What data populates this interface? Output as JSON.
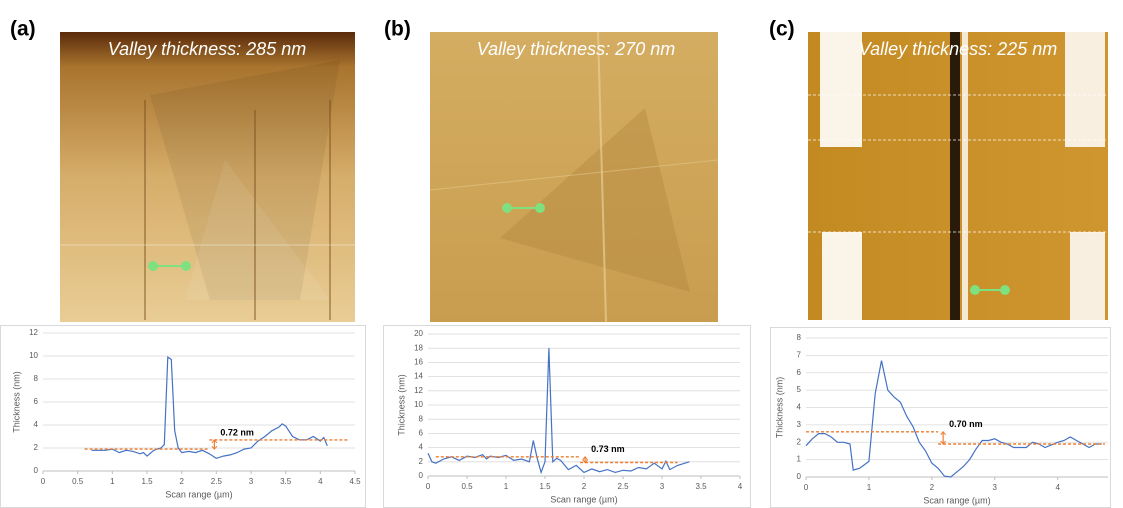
{
  "chart_data": [
    {
      "type": "line",
      "panel": "(a)",
      "image_title": "Valley thickness: 285 nm",
      "annotation": "0.72 nm",
      "xlabel": "Scan range (µm)",
      "ylabel": "Thickness (nm)",
      "xlim": [
        0,
        4.5
      ],
      "ylim": [
        0,
        12
      ],
      "xticks": [
        0,
        0.5,
        1,
        1.5,
        2,
        2.5,
        3,
        3.5,
        4,
        4.5
      ],
      "yticks": [
        0,
        2,
        4,
        6,
        8,
        10,
        12
      ],
      "grid": true,
      "series": [
        {
          "color": "#4472c4",
          "x": [
            0.7,
            0.9,
            1.0,
            1.1,
            1.2,
            1.3,
            1.4,
            1.45,
            1.5,
            1.6,
            1.7,
            1.75,
            1.8,
            1.85,
            1.9,
            1.95,
            2.0,
            2.1,
            2.2,
            2.3,
            2.4,
            2.5,
            2.6,
            2.7,
            2.8,
            2.9,
            3.0,
            3.1,
            3.2,
            3.3,
            3.4,
            3.45,
            3.5,
            3.6,
            3.7,
            3.8,
            3.9,
            4.0,
            4.05,
            4.1
          ],
          "values": [
            1.8,
            1.8,
            1.9,
            1.6,
            1.8,
            1.7,
            1.5,
            1.6,
            1.3,
            1.8,
            2.0,
            2.3,
            9.9,
            9.7,
            3.5,
            2.0,
            1.6,
            1.7,
            1.6,
            1.8,
            1.5,
            1.1,
            1.3,
            1.4,
            1.6,
            1.9,
            2.0,
            2.6,
            3.0,
            3.5,
            3.8,
            4.1,
            3.9,
            3.0,
            2.7,
            2.7,
            3.0,
            2.6,
            2.9,
            2.2
          ]
        },
        {
          "color": "#ed7d31",
          "dash": true,
          "x": [
            0.6,
            2.4
          ],
          "values": [
            1.9,
            1.9
          ]
        },
        {
          "color": "#ed7d31",
          "dash": true,
          "x": [
            2.4,
            4.4
          ],
          "values": [
            2.7,
            2.7
          ]
        }
      ]
    },
    {
      "type": "line",
      "panel": "(b)",
      "image_title": "Valley thickness: 270 nm",
      "annotation": "0.73 nm",
      "xlabel": "Scan range (µm)",
      "ylabel": "Thickness (nm)",
      "xlim": [
        0,
        4
      ],
      "ylim": [
        0,
        20
      ],
      "xticks": [
        0,
        0.5,
        1,
        1.5,
        2,
        2.5,
        3,
        3.5,
        4
      ],
      "yticks": [
        0,
        2,
        4,
        6,
        8,
        10,
        12,
        14,
        16,
        18,
        20
      ],
      "grid": true,
      "series": [
        {
          "color": "#4472c4",
          "x": [
            0,
            0.05,
            0.1,
            0.2,
            0.3,
            0.4,
            0.5,
            0.6,
            0.7,
            0.75,
            0.8,
            0.9,
            1.0,
            1.1,
            1.2,
            1.3,
            1.35,
            1.4,
            1.45,
            1.5,
            1.55,
            1.6,
            1.65,
            1.7,
            1.8,
            1.9,
            2.0,
            2.1,
            2.2,
            2.3,
            2.4,
            2.5,
            2.6,
            2.7,
            2.8,
            2.9,
            3.0,
            3.05,
            3.1,
            3.2,
            3.35
          ],
          "values": [
            3.2,
            2.0,
            1.8,
            2.4,
            2.7,
            2.2,
            2.8,
            2.6,
            3.0,
            2.4,
            2.8,
            2.6,
            2.9,
            2.2,
            2.4,
            2.0,
            5.0,
            2.5,
            0.5,
            2.0,
            18,
            2.0,
            2.5,
            2.2,
            0.9,
            1.5,
            0.5,
            1.0,
            0.6,
            0.9,
            0.5,
            0.8,
            0.7,
            1.2,
            1.0,
            1.8,
            1.0,
            2.1,
            0.9,
            1.5,
            2.0
          ]
        },
        {
          "color": "#ed7d31",
          "dash": true,
          "x": [
            0.1,
            1.95
          ],
          "values": [
            2.7,
            2.7
          ]
        },
        {
          "color": "#ed7d31",
          "dash": true,
          "x": [
            1.95,
            3.2
          ],
          "values": [
            1.9,
            1.9
          ]
        }
      ]
    },
    {
      "type": "line",
      "panel": "(c)",
      "image_title": "Valley thickness: 225 nm",
      "annotation": "0.70 nm",
      "xlabel": "Scan range (µm)",
      "ylabel": "Thickness (nm)",
      "xlim": [
        0,
        4.8
      ],
      "ylim": [
        0,
        8
      ],
      "xticks": [
        0,
        1,
        2,
        3,
        4
      ],
      "yticks": [
        0,
        1,
        2,
        3,
        4,
        5,
        6,
        7,
        8
      ],
      "grid": true,
      "series": [
        {
          "color": "#4472c4",
          "x": [
            0,
            0.1,
            0.2,
            0.3,
            0.4,
            0.5,
            0.6,
            0.7,
            0.75,
            0.85,
            1.0,
            1.1,
            1.2,
            1.3,
            1.4,
            1.5,
            1.6,
            1.7,
            1.8,
            1.9,
            2.0,
            2.1,
            2.2,
            2.3,
            2.4,
            2.5,
            2.6,
            2.7,
            2.8,
            2.9,
            3.0,
            3.1,
            3.2,
            3.3,
            3.5,
            3.6,
            3.7,
            3.8,
            4.0,
            4.1,
            4.2,
            4.3,
            4.4,
            4.5,
            4.6,
            4.7
          ],
          "values": [
            1.8,
            2.2,
            2.5,
            2.5,
            2.3,
            2.0,
            2.0,
            1.9,
            0.4,
            0.5,
            0.9,
            4.8,
            6.7,
            5.0,
            4.6,
            4.3,
            3.5,
            2.9,
            2.0,
            1.5,
            0.8,
            0.5,
            0.05,
            0.0,
            0.3,
            0.6,
            1.0,
            1.6,
            2.1,
            2.1,
            2.2,
            2.0,
            1.9,
            1.7,
            1.7,
            2.0,
            1.9,
            1.7,
            2.0,
            2.1,
            2.3,
            2.1,
            1.9,
            1.7,
            1.9,
            1.9
          ]
        },
        {
          "color": "#ed7d31",
          "dash": true,
          "x": [
            0,
            2.1
          ],
          "values": [
            2.6,
            2.6
          ]
        },
        {
          "color": "#ed7d31",
          "dash": true,
          "x": [
            2.1,
            4.75
          ],
          "values": [
            1.9,
            1.9
          ]
        }
      ]
    }
  ]
}
